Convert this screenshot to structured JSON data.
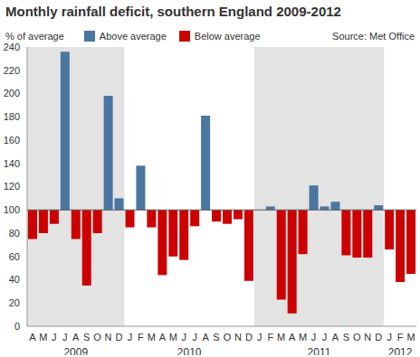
{
  "chart_data": {
    "type": "bar",
    "title": "Monthly rainfall deficit, southern England 2009-2012",
    "subtitle": "% of average",
    "source": "Source: Met Office",
    "categories": [
      "A",
      "M",
      "J",
      "J",
      "A",
      "S",
      "O",
      "N",
      "D",
      "J",
      "F",
      "M",
      "A",
      "M",
      "J",
      "J",
      "A",
      "S",
      "O",
      "N",
      "D",
      "J",
      "F",
      "M",
      "A",
      "M",
      "J",
      "J",
      "A",
      "S",
      "O",
      "N",
      "D",
      "J",
      "F",
      "M"
    ],
    "x_groups": [
      {
        "label": "2009",
        "start": 0,
        "end": 8
      },
      {
        "label": "2010",
        "start": 9,
        "end": 20
      },
      {
        "label": "2011",
        "start": 21,
        "end": 32
      },
      {
        "label": "2012",
        "start": 33,
        "end": 35
      }
    ],
    "baseline": 100,
    "series": [
      {
        "name": "Above average",
        "color": "#4a76a0",
        "values": [
          null,
          null,
          null,
          236,
          null,
          null,
          null,
          198,
          110,
          null,
          138,
          null,
          null,
          null,
          null,
          null,
          181,
          null,
          null,
          null,
          null,
          null,
          103,
          null,
          null,
          null,
          121,
          103,
          107,
          null,
          null,
          null,
          104,
          null,
          null,
          null
        ]
      },
      {
        "name": "Below average",
        "color": "#cc0000",
        "values": [
          75,
          80,
          88,
          null,
          75,
          35,
          80,
          null,
          null,
          85,
          null,
          85,
          44,
          60,
          57,
          86,
          null,
          90,
          88,
          92,
          39,
          null,
          null,
          23,
          11,
          62,
          null,
          null,
          null,
          61,
          59,
          59,
          null,
          66,
          38,
          45
        ]
      }
    ],
    "ylim": [
      0,
      240
    ],
    "yticks": [
      0,
      20,
      40,
      60,
      80,
      100,
      120,
      140,
      160,
      180,
      200,
      220,
      240
    ],
    "grid": false,
    "legend": "top"
  }
}
